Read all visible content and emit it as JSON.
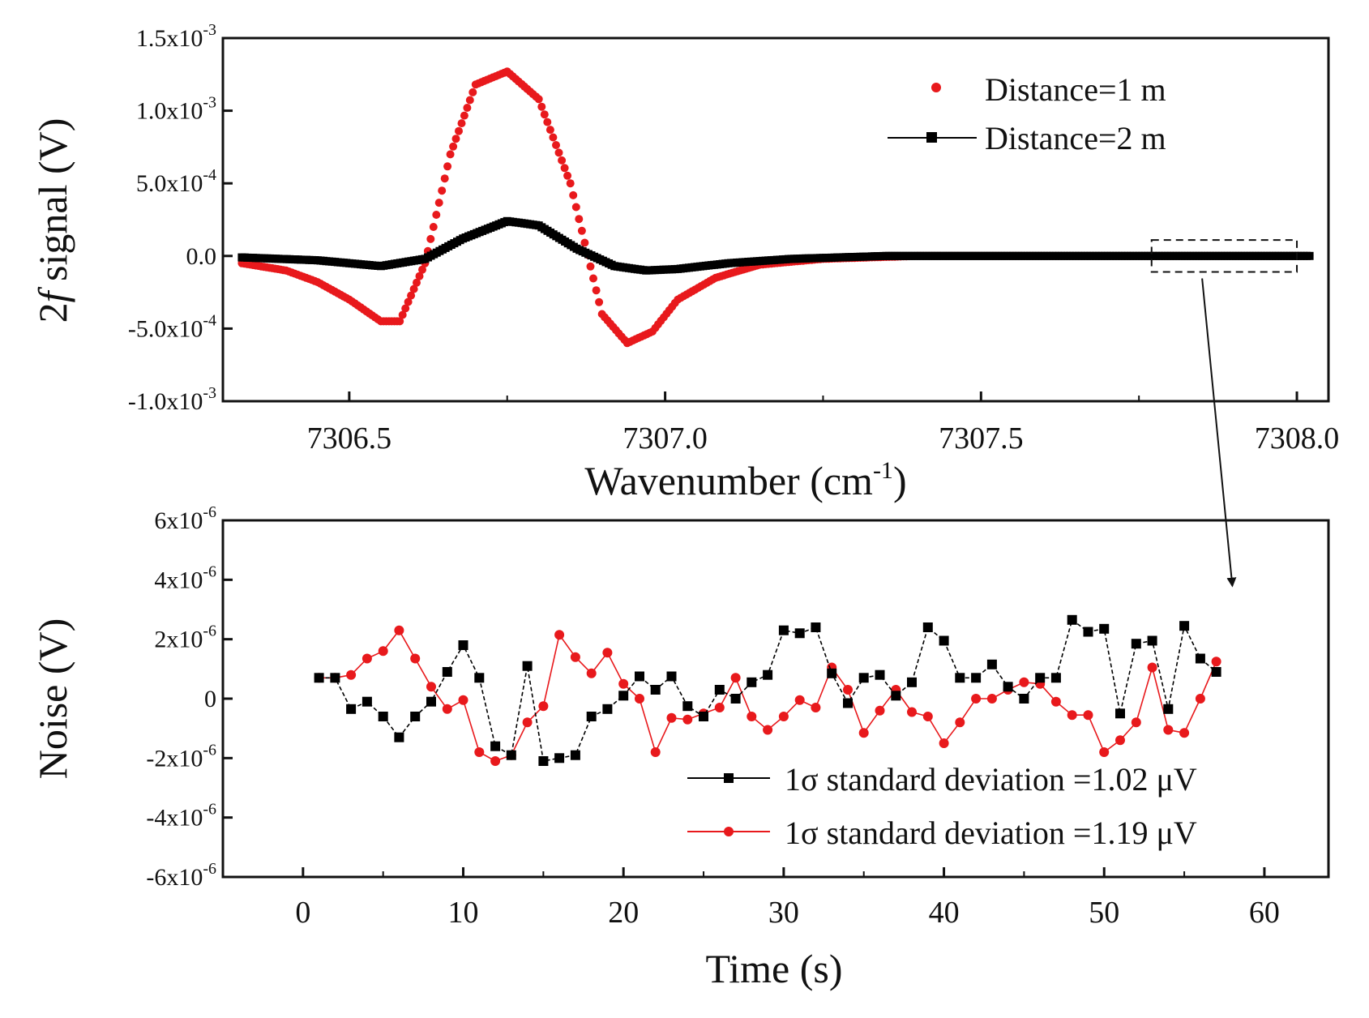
{
  "colors": {
    "red": "#e8191c",
    "black": "#000000"
  },
  "chart_data": [
    {
      "type": "scatter",
      "title": "",
      "xlabel": "Wavenumber (cm-1)",
      "xlabel_parts": {
        "main": "Wavenumber (cm",
        "sup": "-1",
        "close": ")"
      },
      "ylabel_parts": {
        "prefix": "2",
        "italic": "f",
        "suffix": " signal (V)"
      },
      "xlim": [
        7306.3,
        7308.05
      ],
      "ylim": [
        -0.001,
        0.0015
      ],
      "xticks": [
        7306.5,
        7307.0,
        7307.5,
        7308.0
      ],
      "x_tick_labels": [
        "7306.5",
        "7307.0",
        "7307.5",
        "7308.0"
      ],
      "yticks": [
        -0.001,
        -0.0005,
        0.0,
        0.0005,
        0.001,
        0.0015
      ],
      "y_tick_labels": [
        {
          "base": "-1.0x10",
          "exp": "-3"
        },
        {
          "base": "-5.0x10",
          "exp": "-4"
        },
        {
          "base": "0.0",
          "exp": ""
        },
        {
          "base": "5.0x10",
          "exp": "-4"
        },
        {
          "base": "1.0x10",
          "exp": "-3"
        },
        {
          "base": "1.5x10",
          "exp": "-3"
        }
      ],
      "legend_position": "top-right",
      "series": [
        {
          "name": "Distance=1 m",
          "style": "scatter",
          "x": [
            7306.33,
            7306.4,
            7306.45,
            7306.5,
            7306.55,
            7306.58,
            7306.62,
            7306.66,
            7306.7,
            7306.75,
            7306.8,
            7306.85,
            7306.9,
            7306.94,
            7306.98,
            7307.02,
            7307.08,
            7307.15,
            7307.25,
            7307.4,
            7307.6,
            7307.8,
            7308.02
          ],
          "y": [
            -5e-05,
            -0.0001,
            -0.00018,
            -0.0003,
            -0.00045,
            -0.00045,
            -5e-05,
            0.0007,
            0.00118,
            0.00127,
            0.00108,
            0.0005,
            -0.0004,
            -0.0006,
            -0.00052,
            -0.0003,
            -0.00015,
            -6e-05,
            -2e-05,
            0.0,
            0.0,
            0.0,
            0.0
          ]
        },
        {
          "name": "Distance=2 m",
          "style": "line-marker",
          "x": [
            7306.33,
            7306.45,
            7306.55,
            7306.62,
            7306.68,
            7306.75,
            7306.8,
            7306.86,
            7306.92,
            7306.97,
            7307.02,
            7307.1,
            7307.2,
            7307.35,
            7307.6,
            7307.8,
            7308.02
          ],
          "y": [
            -1e-05,
            -3e-05,
            -7e-05,
            -2e-05,
            0.00012,
            0.00024,
            0.00021,
            5e-05,
            -7e-05,
            -0.0001,
            -9e-05,
            -5e-05,
            -2e-05,
            0.0,
            0.0,
            0.0,
            0.0
          ]
        }
      ],
      "annotations": [
        {
          "type": "dashed-box",
          "x_range": [
            7307.77,
            7308.0
          ],
          "y_range": [
            -0.00011,
            0.00011
          ]
        },
        {
          "type": "arrow",
          "from_x": 7307.85,
          "from_y": -0.00011,
          "to_x": 58,
          "to_y": 3.8e-06,
          "to_panel": 2
        }
      ]
    },
    {
      "type": "line",
      "title": "",
      "xlabel": "Time (s)",
      "ylabel": "Noise (V)",
      "xlim": [
        -5,
        64
      ],
      "ylim": [
        -6e-06,
        6e-06
      ],
      "xticks": [
        0,
        10,
        20,
        30,
        40,
        50,
        60
      ],
      "x_tick_labels": [
        "0",
        "10",
        "20",
        "30",
        "40",
        "50",
        "60"
      ],
      "yticks": [
        -6e-06,
        -4e-06,
        -2e-06,
        0,
        2e-06,
        4e-06,
        6e-06
      ],
      "y_tick_labels": [
        {
          "base": "-6x10",
          "exp": "-6"
        },
        {
          "base": "-4x10",
          "exp": "-6"
        },
        {
          "base": "-2x10",
          "exp": "-6"
        },
        {
          "base": "0",
          "exp": ""
        },
        {
          "base": "2x10",
          "exp": "-6"
        },
        {
          "base": "4x10",
          "exp": "-6"
        },
        {
          "base": "6x10",
          "exp": "-6"
        }
      ],
      "legend_position": "bottom-right",
      "x": [
        1,
        2,
        3,
        4,
        5,
        6,
        7,
        8,
        9,
        10,
        11,
        12,
        13,
        14,
        15,
        16,
        17,
        18,
        19,
        20,
        21,
        22,
        23,
        24,
        25,
        26,
        27,
        28,
        29,
        30,
        31,
        32,
        33,
        34,
        35,
        36,
        37,
        38,
        39,
        40,
        41,
        42,
        43,
        44,
        45,
        46,
        47,
        48,
        49,
        50,
        51,
        52,
        53,
        54,
        55,
        56,
        57
      ],
      "series": [
        {
          "name": "1σ standard deviation =1.02  μV",
          "style": "dashed-square",
          "values": [
            7e-07,
            7e-07,
            -3.5e-07,
            -1e-07,
            -6e-07,
            -1.3e-06,
            -6e-07,
            -1e-07,
            9e-07,
            1.8e-06,
            7e-07,
            -1.6e-06,
            -1.9e-06,
            1.1e-06,
            -2.1e-06,
            -2e-06,
            -1.9e-06,
            -6e-07,
            -3.5e-07,
            1e-07,
            7.5e-07,
            3e-07,
            7.5e-07,
            -2.5e-07,
            -6e-07,
            3e-07,
            0.0,
            5.5e-07,
            8e-07,
            2.3e-06,
            2.2e-06,
            2.4e-06,
            8.5e-07,
            -1.5e-07,
            7e-07,
            8e-07,
            1e-07,
            5.5e-07,
            2.4e-06,
            1.95e-06,
            7e-07,
            7e-07,
            1.15e-06,
            4e-07,
            0.0,
            7e-07,
            7e-07,
            2.65e-06,
            2.25e-06,
            2.35e-06,
            -5e-07,
            1.85e-06,
            1.95e-06,
            -3.5e-07,
            2.45e-06,
            1.35e-06,
            9e-07
          ]
        },
        {
          "name": "1σ standard deviation =1.19  μV",
          "style": "line-circle",
          "values": [
            7e-07,
            7e-07,
            8e-07,
            1.35e-06,
            1.6e-06,
            2.3e-06,
            1.35e-06,
            4e-07,
            -3.5e-07,
            -5e-08,
            -1.8e-06,
            -2.1e-06,
            -1.9e-06,
            -8e-07,
            -2.5e-07,
            2.15e-06,
            1.4e-06,
            8.5e-07,
            1.55e-06,
            5e-07,
            0.0,
            -1.8e-06,
            -6.5e-07,
            -7e-07,
            -5e-07,
            -3e-07,
            7e-07,
            -6e-07,
            -1.05e-06,
            -6e-07,
            -5e-08,
            -3e-07,
            1.05e-06,
            3e-07,
            -1.15e-06,
            -4e-07,
            3e-07,
            -4.5e-07,
            -6e-07,
            -1.5e-06,
            -8e-07,
            0.0,
            0.0,
            3e-07,
            5.5e-07,
            5e-07,
            -1e-07,
            -5.5e-07,
            -5.5e-07,
            -1.8e-06,
            -1.4e-06,
            -8e-07,
            1.05e-06,
            -1.05e-06,
            -1.15e-06,
            0.0,
            1.25e-06
          ]
        }
      ]
    }
  ]
}
